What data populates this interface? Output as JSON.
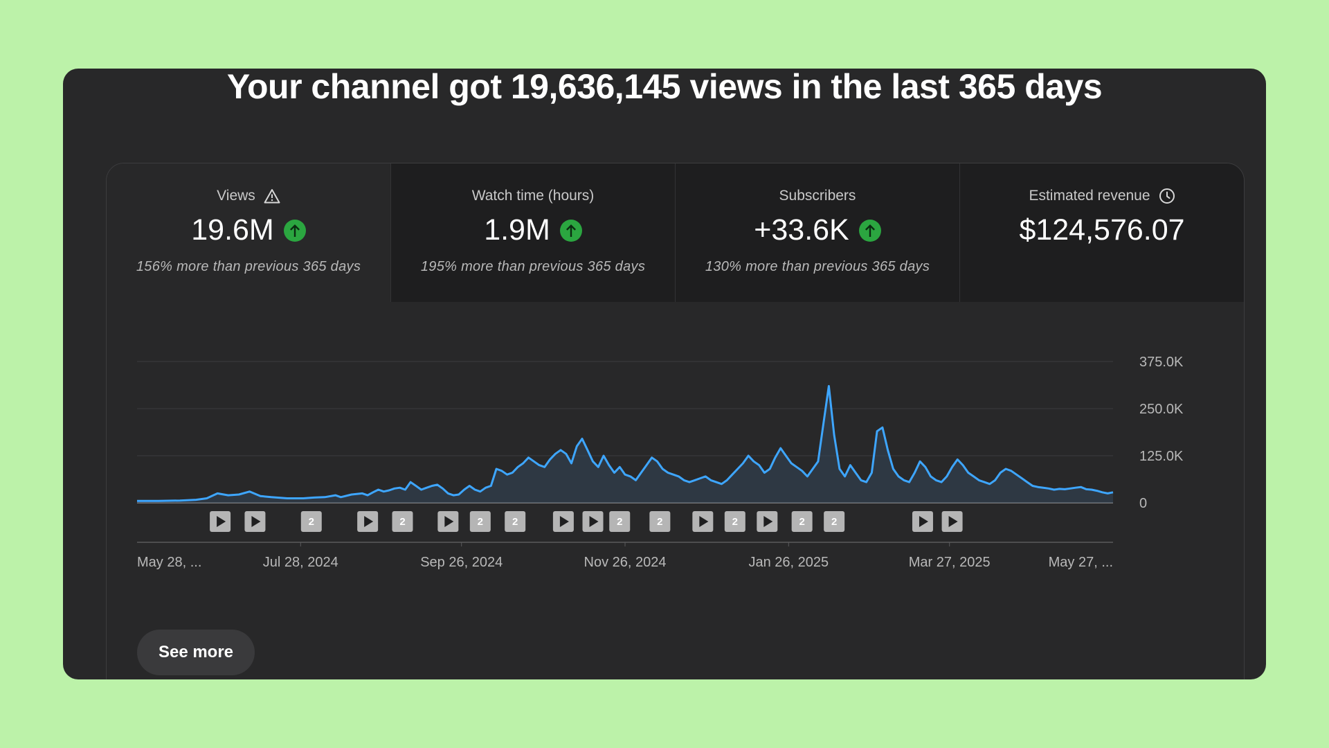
{
  "headline": "Your channel got 19,636,145 views in the last 365 days",
  "metrics": [
    {
      "label": "Views",
      "icon": "warning-icon",
      "value": "19.6M",
      "trend": "up",
      "change": "156% more than previous 365 days"
    },
    {
      "label": "Watch time (hours)",
      "value": "1.9M",
      "trend": "up",
      "change": "195% more than previous 365 days"
    },
    {
      "label": "Subscribers",
      "value": "+33.6K",
      "trend": "up",
      "change": "130% more than previous 365 days"
    },
    {
      "label": "Estimated revenue",
      "icon": "clock-icon",
      "value": "$124,576.07"
    }
  ],
  "colors": {
    "accent": "#3ea6ff",
    "up": "#2ba640",
    "panel": "#282829",
    "page": "#bcf2a9"
  },
  "chart_data": {
    "type": "area",
    "series_color": "#3ea6ff",
    "y_ticks": [
      "375.0K",
      "250.0K",
      "125.0K",
      "0"
    ],
    "y_tick_values": [
      375000,
      250000,
      125000,
      0
    ],
    "ylim": [
      0,
      375000
    ],
    "x_tick_labels": [
      "May 28, ...",
      "Jul 28, 2024",
      "Sep 26, 2024",
      "Nov 26, 2024",
      "Jan 26, 2025",
      "Mar 27, 2025",
      "May 27, ..."
    ],
    "x_tick_days": [
      0,
      61,
      121,
      182,
      243,
      303,
      364
    ],
    "points": [
      [
        0,
        5000
      ],
      [
        8,
        5000
      ],
      [
        16,
        6000
      ],
      [
        22,
        8000
      ],
      [
        26,
        12000
      ],
      [
        30,
        25000
      ],
      [
        34,
        20000
      ],
      [
        38,
        22000
      ],
      [
        42,
        30000
      ],
      [
        46,
        18000
      ],
      [
        50,
        15000
      ],
      [
        56,
        12000
      ],
      [
        62,
        12000
      ],
      [
        66,
        14000
      ],
      [
        70,
        15000
      ],
      [
        74,
        20000
      ],
      [
        76,
        15000
      ],
      [
        80,
        22000
      ],
      [
        84,
        25000
      ],
      [
        86,
        20000
      ],
      [
        88,
        28000
      ],
      [
        90,
        35000
      ],
      [
        92,
        30000
      ],
      [
        94,
        33000
      ],
      [
        96,
        38000
      ],
      [
        98,
        40000
      ],
      [
        100,
        35000
      ],
      [
        102,
        55000
      ],
      [
        104,
        45000
      ],
      [
        106,
        35000
      ],
      [
        108,
        40000
      ],
      [
        110,
        45000
      ],
      [
        112,
        48000
      ],
      [
        114,
        38000
      ],
      [
        116,
        25000
      ],
      [
        118,
        20000
      ],
      [
        120,
        22000
      ],
      [
        122,
        35000
      ],
      [
        124,
        45000
      ],
      [
        126,
        35000
      ],
      [
        128,
        30000
      ],
      [
        130,
        40000
      ],
      [
        132,
        45000
      ],
      [
        134,
        90000
      ],
      [
        136,
        85000
      ],
      [
        138,
        75000
      ],
      [
        140,
        80000
      ],
      [
        142,
        95000
      ],
      [
        144,
        105000
      ],
      [
        146,
        120000
      ],
      [
        148,
        110000
      ],
      [
        150,
        100000
      ],
      [
        152,
        95000
      ],
      [
        154,
        115000
      ],
      [
        156,
        130000
      ],
      [
        158,
        140000
      ],
      [
        160,
        130000
      ],
      [
        162,
        105000
      ],
      [
        164,
        150000
      ],
      [
        166,
        170000
      ],
      [
        168,
        140000
      ],
      [
        170,
        110000
      ],
      [
        172,
        95000
      ],
      [
        174,
        125000
      ],
      [
        176,
        100000
      ],
      [
        178,
        80000
      ],
      [
        180,
        95000
      ],
      [
        182,
        75000
      ],
      [
        184,
        70000
      ],
      [
        186,
        60000
      ],
      [
        188,
        80000
      ],
      [
        190,
        100000
      ],
      [
        192,
        120000
      ],
      [
        194,
        110000
      ],
      [
        196,
        90000
      ],
      [
        198,
        80000
      ],
      [
        200,
        75000
      ],
      [
        202,
        70000
      ],
      [
        204,
        60000
      ],
      [
        206,
        55000
      ],
      [
        208,
        60000
      ],
      [
        210,
        65000
      ],
      [
        212,
        70000
      ],
      [
        214,
        60000
      ],
      [
        216,
        55000
      ],
      [
        218,
        50000
      ],
      [
        220,
        60000
      ],
      [
        222,
        75000
      ],
      [
        224,
        90000
      ],
      [
        226,
        105000
      ],
      [
        228,
        125000
      ],
      [
        230,
        110000
      ],
      [
        232,
        100000
      ],
      [
        234,
        80000
      ],
      [
        236,
        90000
      ],
      [
        238,
        120000
      ],
      [
        240,
        145000
      ],
      [
        242,
        125000
      ],
      [
        244,
        105000
      ],
      [
        246,
        95000
      ],
      [
        248,
        85000
      ],
      [
        250,
        70000
      ],
      [
        252,
        90000
      ],
      [
        254,
        110000
      ],
      [
        256,
        210000
      ],
      [
        258,
        310000
      ],
      [
        260,
        180000
      ],
      [
        262,
        90000
      ],
      [
        264,
        70000
      ],
      [
        266,
        100000
      ],
      [
        268,
        80000
      ],
      [
        270,
        60000
      ],
      [
        272,
        55000
      ],
      [
        274,
        80000
      ],
      [
        276,
        190000
      ],
      [
        278,
        200000
      ],
      [
        280,
        140000
      ],
      [
        282,
        90000
      ],
      [
        284,
        70000
      ],
      [
        286,
        60000
      ],
      [
        288,
        55000
      ],
      [
        290,
        80000
      ],
      [
        292,
        110000
      ],
      [
        294,
        95000
      ],
      [
        296,
        70000
      ],
      [
        298,
        60000
      ],
      [
        300,
        55000
      ],
      [
        302,
        70000
      ],
      [
        304,
        95000
      ],
      [
        306,
        115000
      ],
      [
        308,
        100000
      ],
      [
        310,
        80000
      ],
      [
        312,
        70000
      ],
      [
        314,
        60000
      ],
      [
        316,
        55000
      ],
      [
        318,
        50000
      ],
      [
        320,
        60000
      ],
      [
        322,
        80000
      ],
      [
        324,
        90000
      ],
      [
        326,
        85000
      ],
      [
        328,
        75000
      ],
      [
        330,
        65000
      ],
      [
        332,
        55000
      ],
      [
        334,
        45000
      ],
      [
        336,
        42000
      ],
      [
        338,
        40000
      ],
      [
        340,
        38000
      ],
      [
        342,
        35000
      ],
      [
        344,
        37000
      ],
      [
        346,
        36000
      ],
      [
        348,
        38000
      ],
      [
        350,
        40000
      ],
      [
        352,
        42000
      ],
      [
        354,
        36000
      ],
      [
        356,
        35000
      ],
      [
        358,
        32000
      ],
      [
        360,
        28000
      ],
      [
        362,
        25000
      ],
      [
        364,
        28000
      ]
    ],
    "markers": [
      {
        "day": 31,
        "kind": "play"
      },
      {
        "day": 44,
        "kind": "play"
      },
      {
        "day": 65,
        "kind": "count",
        "label": "2"
      },
      {
        "day": 86,
        "kind": "play"
      },
      {
        "day": 99,
        "kind": "count",
        "label": "2"
      },
      {
        "day": 116,
        "kind": "play"
      },
      {
        "day": 128,
        "kind": "count",
        "label": "2"
      },
      {
        "day": 141,
        "kind": "count",
        "label": "2"
      },
      {
        "day": 159,
        "kind": "play"
      },
      {
        "day": 170,
        "kind": "play"
      },
      {
        "day": 180,
        "kind": "count",
        "label": "2"
      },
      {
        "day": 195,
        "kind": "count",
        "label": "2"
      },
      {
        "day": 211,
        "kind": "play"
      },
      {
        "day": 223,
        "kind": "count",
        "label": "2"
      },
      {
        "day": 235,
        "kind": "play"
      },
      {
        "day": 248,
        "kind": "count",
        "label": "2"
      },
      {
        "day": 260,
        "kind": "count",
        "label": "2"
      },
      {
        "day": 293,
        "kind": "play"
      },
      {
        "day": 304,
        "kind": "play"
      }
    ]
  },
  "see_more_label": "See more"
}
